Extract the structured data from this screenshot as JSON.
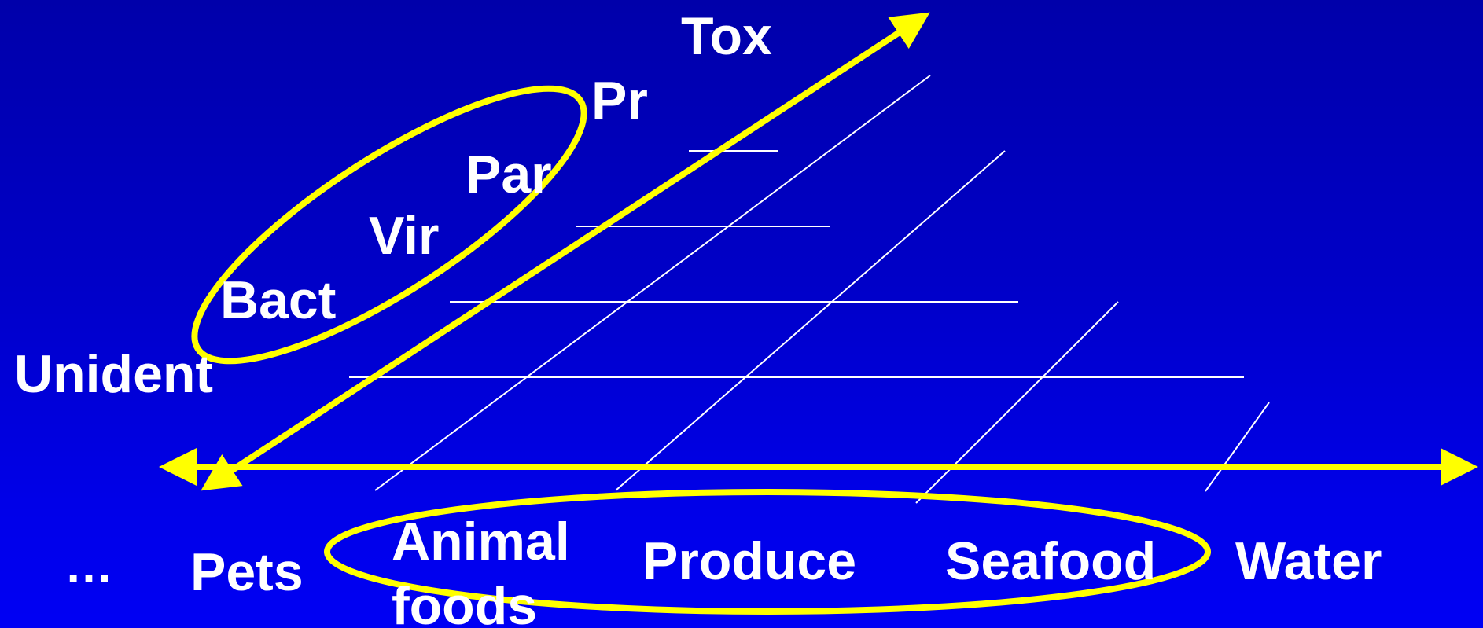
{
  "colors": {
    "background_top": "#0000aa",
    "background_bottom": "#0000f4",
    "text": "#ffffff",
    "axis": "#ffff00",
    "gridline": "#ffffff"
  },
  "hazard_axis": {
    "labels": {
      "tox": "Tox",
      "pr": "Pr",
      "par": "Par",
      "vir": "Vir",
      "bact": "Bact",
      "unident": "Unident"
    }
  },
  "food_axis": {
    "labels": {
      "ellipsis": "…",
      "pets": "Pets",
      "animal_foods": "Animal foods",
      "produce": "Produce",
      "seafood": "Seafood",
      "water": "Water"
    }
  }
}
